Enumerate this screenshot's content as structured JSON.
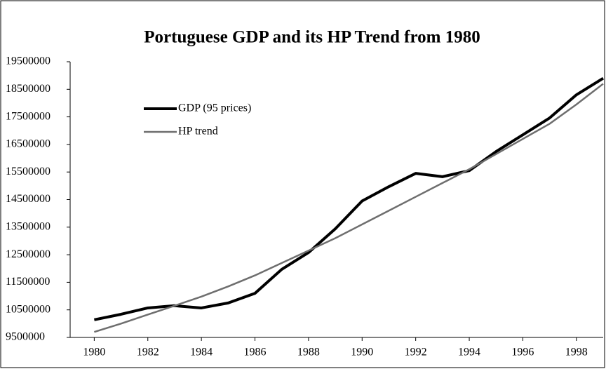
{
  "chart_data": {
    "type": "line",
    "title": "Portuguese GDP and its HP Trend from 1980",
    "x": [
      1980,
      1981,
      1982,
      1983,
      1984,
      1985,
      1986,
      1987,
      1988,
      1989,
      1990,
      1991,
      1992,
      1993,
      1994,
      1995,
      1996,
      1997,
      1998,
      1999
    ],
    "series": [
      {
        "name": "GDP (95 prices)",
        "color": "#000000",
        "values": [
          10140000,
          10340000,
          10570000,
          10650000,
          10570000,
          10750000,
          11100000,
          11970000,
          12580000,
          13440000,
          14450000,
          14970000,
          15450000,
          15330000,
          15550000,
          16240000,
          16850000,
          17460000,
          18300000,
          18900000
        ]
      },
      {
        "name": "HP trend",
        "color": "#6e6e6e",
        "values": [
          9700000,
          10000000,
          10330000,
          10650000,
          10980000,
          11350000,
          11750000,
          12200000,
          12650000,
          13100000,
          13600000,
          14100000,
          14600000,
          15100000,
          15600000,
          16150000,
          16700000,
          17250000,
          17950000,
          18700000
        ]
      }
    ],
    "xlim": [
      1979.1,
      1999
    ],
    "xticks": [
      1980,
      1982,
      1984,
      1986,
      1988,
      1990,
      1992,
      1994,
      1996,
      1998
    ],
    "ylim": [
      9500000,
      19500000
    ],
    "yticks": [
      9500000,
      10500000,
      11500000,
      12500000,
      13500000,
      14500000,
      15500000,
      16500000,
      17500000,
      18500000,
      19500000
    ],
    "grid": false,
    "legend": "upper left"
  }
}
